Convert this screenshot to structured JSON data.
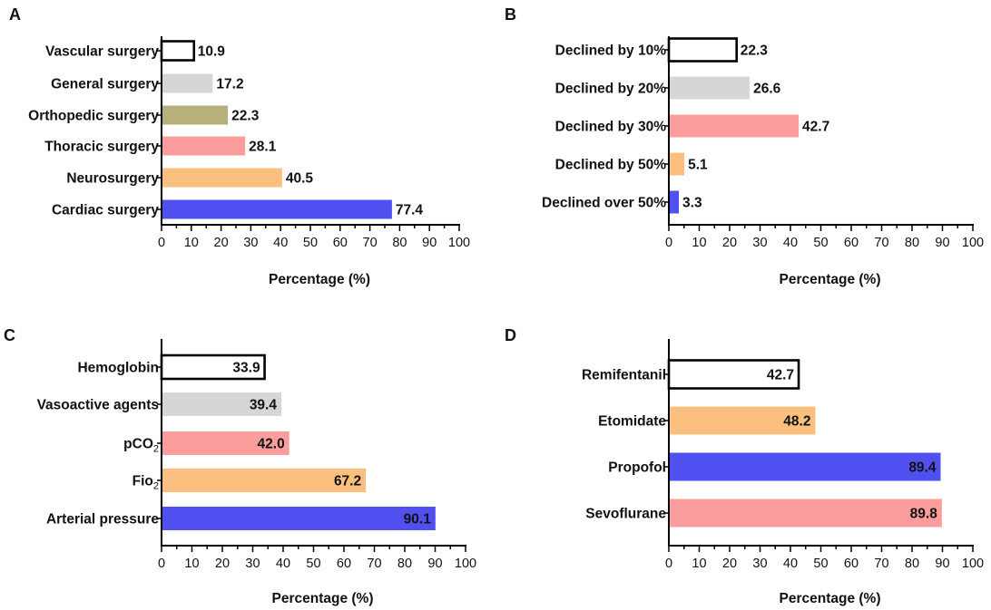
{
  "chart_data": [
    {
      "type": "bar",
      "orientation": "horizontal",
      "panel": "A",
      "categories": [
        "Vascular surgery",
        "General surgery",
        "Orthopedic surgery",
        "Thoracic surgery",
        "Neurosurgery",
        "Cardiac surgery"
      ],
      "values": [
        10.9,
        17.2,
        22.3,
        28.1,
        40.5,
        77.4
      ],
      "value_labels": [
        "10.9",
        "17.2",
        "22.3",
        "28.1",
        "40.5",
        "77.4"
      ],
      "colors": [
        "#ffffff",
        "#d6d6d6",
        "#b8b07a",
        "#fb9d9d",
        "#fbc07f",
        "#5050f0"
      ],
      "label_position": "outside",
      "xlabel": "Percentage (%)",
      "xlim": [
        0,
        100
      ],
      "xticks": [
        "0",
        "10",
        "20",
        "30",
        "40",
        "50",
        "60",
        "70",
        "80",
        "90",
        "100"
      ]
    },
    {
      "type": "bar",
      "orientation": "horizontal",
      "panel": "B",
      "categories": [
        "Declined by 10%",
        "Declined by 20%",
        "Declined by 30%",
        "Declined by 50%",
        "Declined over 50%"
      ],
      "values": [
        22.3,
        26.6,
        42.7,
        5.1,
        3.3
      ],
      "value_labels": [
        "22.3",
        "26.6",
        "42.7",
        "5.1",
        "3.3"
      ],
      "colors": [
        "#ffffff",
        "#d6d6d6",
        "#fb9d9d",
        "#fbc07f",
        "#5050f0"
      ],
      "label_position": "outside",
      "xlabel": "Percentage (%)",
      "xlim": [
        0,
        100
      ],
      "xticks": [
        "0",
        "10",
        "20",
        "30",
        "40",
        "50",
        "60",
        "70",
        "80",
        "90",
        "100"
      ]
    },
    {
      "type": "bar",
      "orientation": "horizontal",
      "panel": "C",
      "categories": [
        "Hemoglobin",
        "Vasoactive agents",
        "pCO",
        "Fio",
        "Arterial pressure"
      ],
      "category_subscripts": [
        "",
        "",
        "2",
        "2",
        ""
      ],
      "values": [
        33.9,
        39.4,
        42.0,
        67.2,
        90.1
      ],
      "value_labels": [
        "33.9",
        "39.4",
        "42.0",
        "67.2",
        "90.1"
      ],
      "colors": [
        "#ffffff",
        "#d6d6d6",
        "#fb9d9d",
        "#fbc07f",
        "#5050f0"
      ],
      "label_position": "inside",
      "xlabel": "Percentage (%)",
      "xlim": [
        0,
        100
      ],
      "xticks": [
        "0",
        "10",
        "20",
        "30",
        "40",
        "50",
        "60",
        "70",
        "80",
        "90",
        "100"
      ]
    },
    {
      "type": "bar",
      "orientation": "horizontal",
      "panel": "D",
      "categories": [
        "Remifentanil",
        "Etomidate",
        "Propofol",
        "Sevoflurane"
      ],
      "values": [
        42.7,
        48.2,
        89.4,
        89.8
      ],
      "value_labels": [
        "42.7",
        "48.2",
        "89.4",
        "89.8"
      ],
      "colors": [
        "#ffffff",
        "#fbc07f",
        "#5050f0",
        "#fb9d9d"
      ],
      "label_position": "inside",
      "xlabel": "Percentage (%)",
      "xlim": [
        0,
        100
      ],
      "xticks": [
        "0",
        "10",
        "20",
        "30",
        "40",
        "50",
        "60",
        "70",
        "80",
        "90",
        "100"
      ]
    }
  ]
}
